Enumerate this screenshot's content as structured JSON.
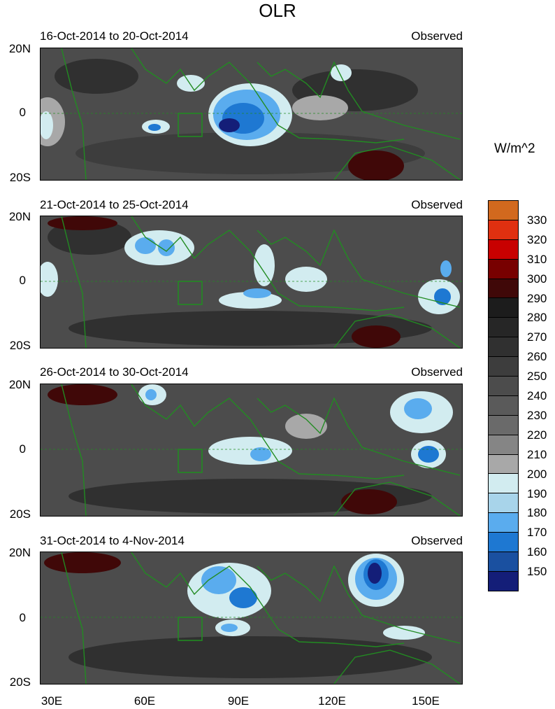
{
  "title": "OLR",
  "units": "W/m^2",
  "panels": [
    {
      "left": "16-Oct-2014 to 20-Oct-2014",
      "right": "Observed"
    },
    {
      "left": "21-Oct-2014 to 25-Oct-2014",
      "right": "Observed"
    },
    {
      "left": "26-Oct-2014 to 30-Oct-2014",
      "right": "Observed"
    },
    {
      "left": "31-Oct-2014 to 4-Nov-2014",
      "right": "Observed"
    }
  ],
  "y_ticks": [
    "20N",
    "0",
    "20S"
  ],
  "x_ticks": [
    "30E",
    "60E",
    "90E",
    "120E",
    "150E"
  ],
  "colorbar": {
    "labels": [
      "330",
      "320",
      "310",
      "300",
      "290",
      "280",
      "270",
      "260",
      "250",
      "240",
      "230",
      "220",
      "210",
      "200",
      "190",
      "180",
      "170",
      "160",
      "150"
    ],
    "colors": [
      "#d2691e",
      "#e03010",
      "#c80000",
      "#780000",
      "#400808",
      "#1c1c1c",
      "#262626",
      "#303030",
      "#3d3d3d",
      "#4c4c4c",
      "#5a5a5a",
      "#6a6a6a",
      "#858585",
      "#a8a8a8",
      "#d2ecf0",
      "#a8d4ea",
      "#5aacee",
      "#1e78d2",
      "#1a50a0",
      "#141e78"
    ]
  }
}
